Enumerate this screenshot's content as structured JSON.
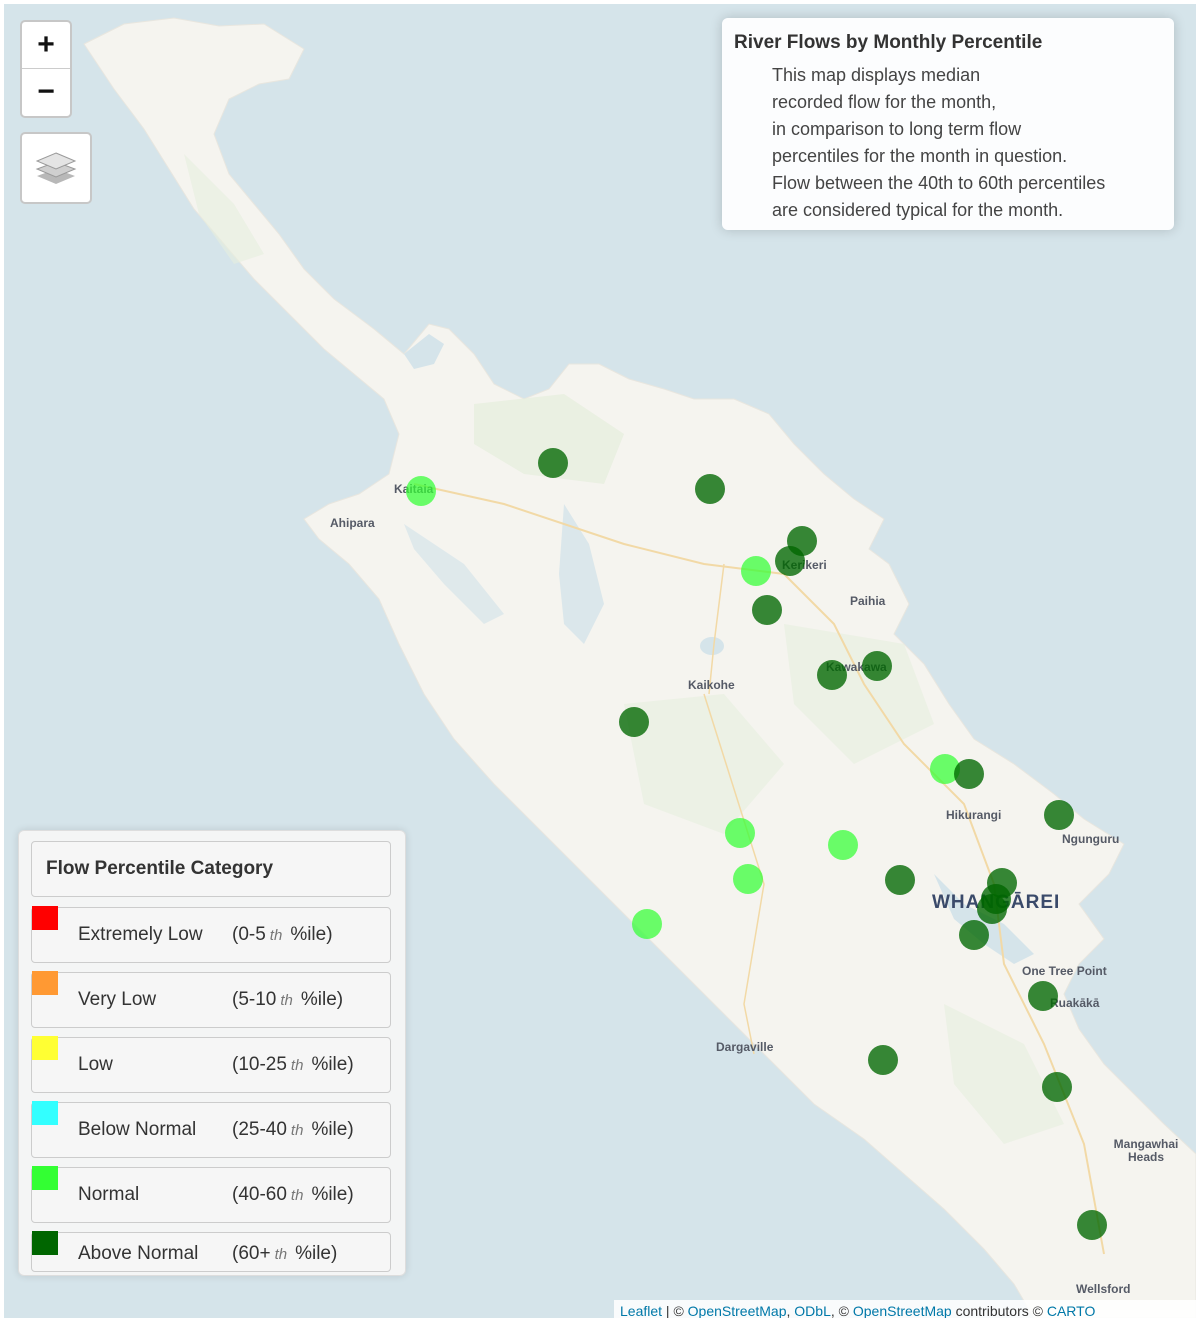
{
  "info_box": {
    "title": "River Flows by Monthly Percentile",
    "lines": [
      "This map displays median",
      "recorded flow for the month,",
      "in comparison to long term flow",
      "percentiles for the month in question.",
      "Flow between the 40th to 60th percentiles",
      "are considered typical for the month."
    ]
  },
  "controls": {
    "zoom_in": "+",
    "zoom_out": "−",
    "layers_icon": "layers-icon"
  },
  "legend": {
    "title": "Flow Percentile Category",
    "categories": [
      {
        "name": "Extremely Low",
        "range_start": "(0-5",
        "range_suffix": "th",
        "range_end": "%ile)",
        "color": "#ff0000"
      },
      {
        "name": "Very Low",
        "range_start": "(5-10",
        "range_suffix": "th",
        "range_end": "%ile)",
        "color": "#ff9933"
      },
      {
        "name": "Low",
        "range_start": "(10-25",
        "range_suffix": "th",
        "range_end": "%ile)",
        "color": "#ffff33"
      },
      {
        "name": "Below Normal",
        "range_start": "(25-40",
        "range_suffix": "th",
        "range_end": "%ile)",
        "color": "#33ffff"
      },
      {
        "name": "Normal",
        "range_start": "(40-60",
        "range_suffix": "th",
        "range_end": "%ile)",
        "color": "#33ff33"
      },
      {
        "name": "Above Normal",
        "range_start": "(60+",
        "range_suffix": "th",
        "range_end": "%ile)",
        "color": "#006600"
      }
    ]
  },
  "places": [
    {
      "name": "Ahipara"
    },
    {
      "name": "Kaitaia"
    },
    {
      "name": "Kerikeri"
    },
    {
      "name": "Paihia"
    },
    {
      "name": "Kawakawa"
    },
    {
      "name": "Kaikohe"
    },
    {
      "name": "Hikurangi"
    },
    {
      "name": "Ngunguru"
    },
    {
      "name": "WHANGĀREI"
    },
    {
      "name": "One Tree Point"
    },
    {
      "name": "Ruakākā"
    },
    {
      "name": "Dargaville"
    },
    {
      "name": "Mangawhai Heads"
    },
    {
      "name": "Wellsford"
    }
  ],
  "markers": [
    {
      "category": "Normal"
    },
    {
      "category": "Above Normal"
    },
    {
      "category": "Above Normal"
    },
    {
      "category": "Above Normal"
    },
    {
      "category": "Above Normal"
    },
    {
      "category": "Normal"
    },
    {
      "category": "Above Normal"
    },
    {
      "category": "Above Normal"
    },
    {
      "category": "Above Normal"
    },
    {
      "category": "Above Normal"
    },
    {
      "category": "Normal"
    },
    {
      "category": "Above Normal"
    },
    {
      "category": "Above Normal"
    },
    {
      "category": "Normal"
    },
    {
      "category": "Normal"
    },
    {
      "category": "Normal"
    },
    {
      "category": "Normal"
    },
    {
      "category": "Above Normal"
    },
    {
      "category": "Above Normal"
    },
    {
      "category": "Above Normal"
    },
    {
      "category": "Above Normal"
    },
    {
      "category": "Above Normal"
    },
    {
      "category": "Above Normal"
    },
    {
      "category": "Above Normal"
    },
    {
      "category": "Above Normal"
    }
  ],
  "attribution": {
    "leaflet": "Leaflet",
    "sep1": " | © ",
    "osm1": "OpenStreetMap",
    "sep2": ", ",
    "odbl": "ODbL",
    "sep3": ", © ",
    "osm2": "OpenStreetMap",
    "sep4": " contributors © ",
    "carto": "CARTO"
  }
}
